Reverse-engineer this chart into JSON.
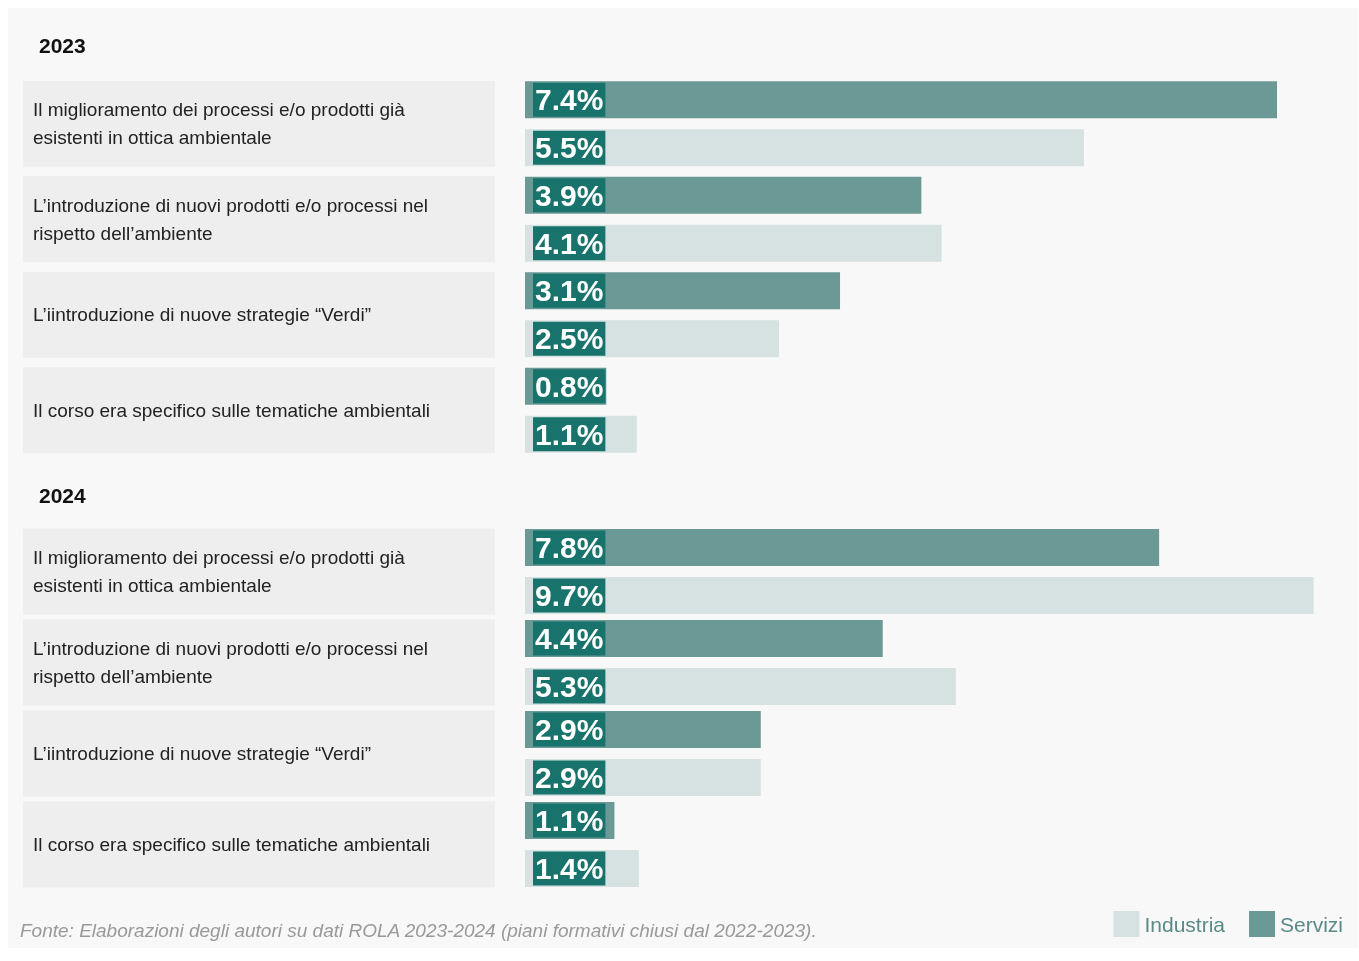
{
  "chart_data": [
    {
      "type": "bar",
      "orientation": "horizontal",
      "title": "2023",
      "legend": false,
      "categories": [
        "Il miglioramento dei processi e/o prodotti già esistenti in ottica ambientale",
        "L’introduzione di nuovi prodotti e/o processi nel rispetto dell’ambiente",
        "L’iintroduzione di nuove strategie “Verdi”",
        "Il corso era specifico sulle tematiche ambientali"
      ],
      "series": [
        {
          "color": "#6a9996",
          "values": [
            7.4,
            3.9,
            3.1,
            0.8
          ],
          "value_labels": [
            "7.4%",
            "3.9%",
            "3.1%",
            "0.8%"
          ]
        },
        {
          "color": "#d6e2e1",
          "values": [
            5.5,
            4.1,
            2.5,
            1.1
          ],
          "value_labels": [
            "5.5%",
            "4.1%",
            "2.5%",
            "1.1%"
          ]
        }
      ]
    },
    {
      "type": "bar",
      "orientation": "horizontal",
      "title": "2024",
      "legend": "bottom right",
      "categories": [
        "Il miglioramento dei processi e/o prodotti già esistenti in ottica ambientale",
        "L’introduzione di nuovi prodotti e/o processi nel rispetto dell’ambiente",
        "L’iintroduzione di nuove strategie “Verdi”",
        "Il corso era specifico sulle tematiche ambientali"
      ],
      "series": [
        {
          "name": "Servizi",
          "color": "#6a9996",
          "values": [
            7.8,
            4.4,
            2.9,
            1.1
          ],
          "value_labels": [
            "7.8%",
            "4.4%",
            "2.9%",
            "1.1%"
          ]
        },
        {
          "name": "Industria",
          "color": "#d6e2e1",
          "values": [
            9.7,
            5.3,
            2.9,
            1.4
          ],
          "value_labels": [
            "9.7%",
            "5.3%",
            "2.9%",
            "1.4%"
          ]
        }
      ],
      "annotations": [
        "Fonte: Elaborazioni degli autori su dati ROLA 2023-2024 (piani formativi chiusi dal 2022-2023)."
      ]
    }
  ]
}
